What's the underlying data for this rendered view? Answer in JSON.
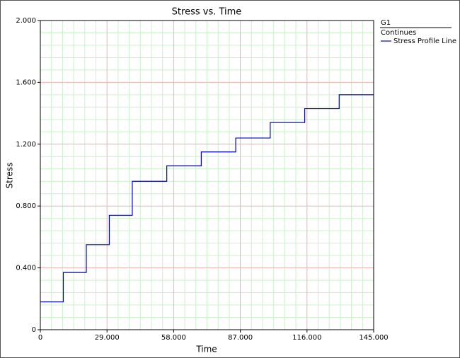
{
  "chart_data": {
    "type": "line",
    "title": "Stress vs. Time",
    "x_label": "Time",
    "y_label": "Stress",
    "x": [
      0,
      10,
      10,
      20,
      20,
      30,
      30,
      40,
      40,
      55,
      55,
      70,
      70,
      85,
      85,
      100,
      100,
      115,
      115,
      130,
      130,
      145
    ],
    "series": [
      {
        "name": "Stress Profile Line",
        "color": "#0000cc",
        "values": [
          0.18,
          0.18,
          0.37,
          0.37,
          0.55,
          0.55,
          0.74,
          0.74,
          0.96,
          0.96,
          1.06,
          1.06,
          1.15,
          1.15,
          1.24,
          1.24,
          1.34,
          1.34,
          1.43,
          1.43,
          1.52,
          1.52
        ]
      }
    ],
    "xlim": [
      0,
      145
    ],
    "xticks": [
      0,
      {
        "value": 29,
        "label": "29.000"
      },
      {
        "value": 58,
        "label": "58.000"
      },
      {
        "value": 87,
        "label": "87.000"
      },
      {
        "value": 116,
        "label": "116.000"
      },
      {
        "value": 145,
        "label": "145.000"
      }
    ],
    "ylim": [
      0,
      2
    ],
    "yticks": [
      0,
      {
        "value": 0.4,
        "label": "0.400"
      },
      {
        "value": 0.8,
        "label": "0.800"
      },
      {
        "value": 1.2,
        "label": "1.200"
      },
      {
        "value": 1.6,
        "label": "1.600"
      },
      {
        "value": 2,
        "label": "2.000"
      }
    ],
    "grid": true,
    "legend": {
      "title": "G1",
      "group": "Continues",
      "position": "right"
    }
  }
}
